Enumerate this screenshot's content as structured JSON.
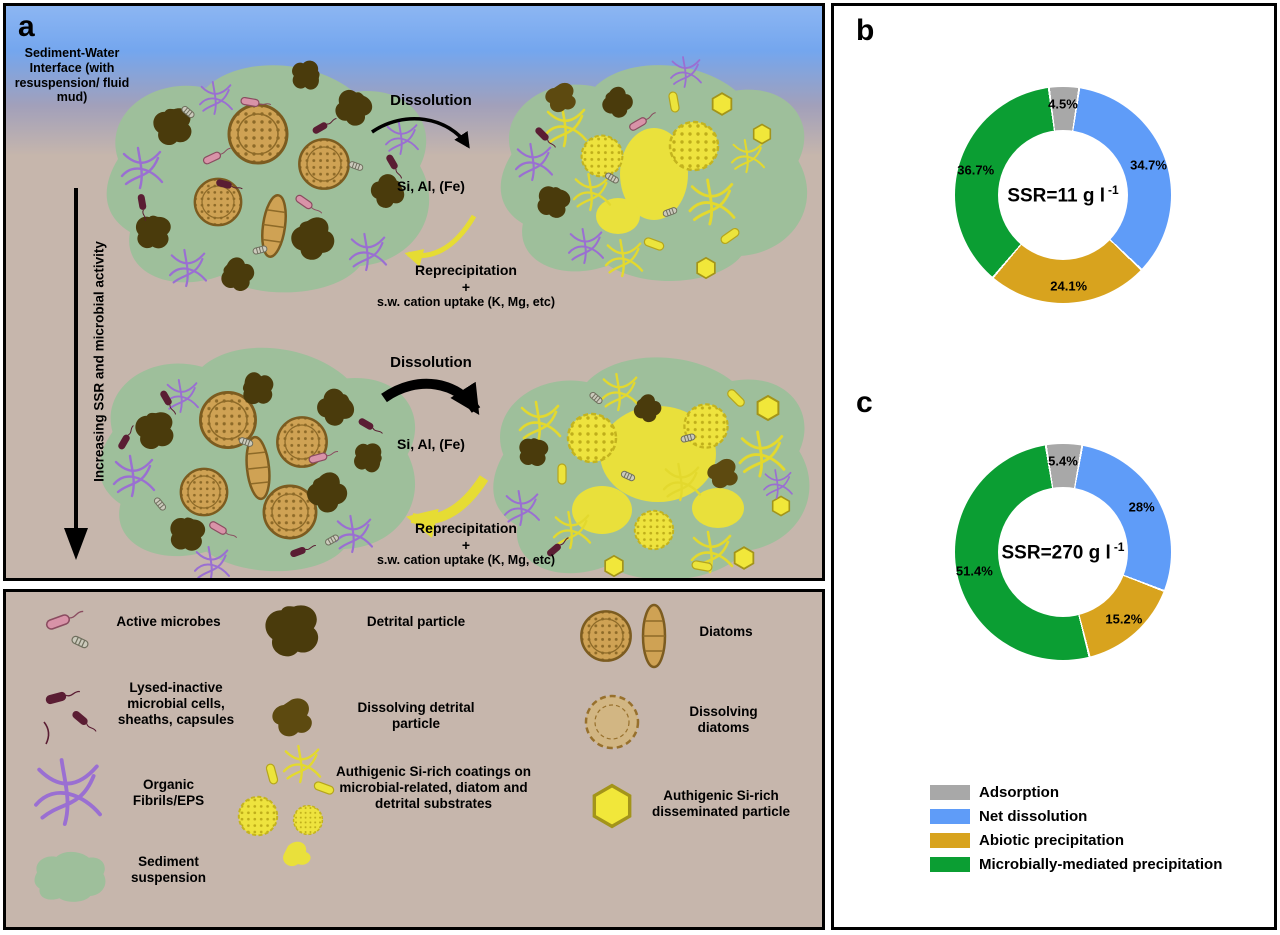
{
  "figure": {
    "panel_a": {
      "label": "a",
      "interface_caption": "Sediment-Water Interface (with resuspension/ fluid mud)",
      "axis_label": "Increasing SSR and microbial activity",
      "top_process": {
        "dissolution": "Dissolution",
        "ions": "Si, Al, (Fe)",
        "reprecipitation": "Reprecipitation",
        "plus": "+",
        "uptake": "s.w. cation uptake (K, Mg, etc)"
      },
      "bottom_process": {
        "dissolution": "Dissolution",
        "ions": "Si, Al, (Fe)",
        "reprecipitation": "Reprecipitation",
        "plus": "+",
        "uptake": "s.w. cation uptake (K, Mg, etc)"
      }
    },
    "legend_panel": {
      "items": [
        "Active microbes",
        "Lysed-inactive microbial cells, sheaths, capsules",
        "Organic Fibrils/EPS",
        "Sediment suspension",
        "Detrital particle",
        "Dissolving detrital particle",
        "Authigenic Si-rich coatings on microbial-related, diatom and detrital substrates",
        "Diatoms",
        "Dissolving diatoms",
        "Authigenic Si-rich disseminated particle"
      ]
    },
    "panel_b": {
      "label": "b"
    },
    "panel_c": {
      "label": "c"
    }
  },
  "chart_data": [
    {
      "type": "pie",
      "subtype": "donut",
      "panel": "b",
      "center_label": "SSR=11 g l",
      "center_superscript": "-1",
      "legend_position": "bottom-right",
      "segments": [
        {
          "label": "Adsorption",
          "value": 4.5,
          "display": "4.5%",
          "color": "#a8a8a8"
        },
        {
          "label": "Net dissolution",
          "value": 34.7,
          "display": "34.7%",
          "color": "#5f9cf8"
        },
        {
          "label": "Abiotic precipitation",
          "value": 24.1,
          "display": "24.1%",
          "color": "#d8a31e"
        },
        {
          "label": "Microbially-mediated precipitation",
          "value": 36.7,
          "display": "36.7%",
          "color": "#0b9e33"
        }
      ]
    },
    {
      "type": "pie",
      "subtype": "donut",
      "panel": "c",
      "center_label": "SSR=270 g l",
      "center_superscript": "-1",
      "legend_position": "bottom-right",
      "segments": [
        {
          "label": "Adsorption",
          "value": 5.4,
          "display": "5.4%",
          "color": "#a8a8a8"
        },
        {
          "label": "Net dissolution",
          "value": 28,
          "display": "28%",
          "color": "#5f9cf8"
        },
        {
          "label": "Abiotic precipitation",
          "value": 15.2,
          "display": "15.2%",
          "color": "#d8a31e"
        },
        {
          "label": "Microbially-mediated precipitation",
          "value": 51.4,
          "display": "51.4%",
          "color": "#0b9e33"
        }
      ]
    }
  ],
  "right_legend": {
    "items": [
      {
        "label": "Adsorption",
        "color": "#a8a8a8"
      },
      {
        "label": "Net dissolution",
        "color": "#5f9cf8"
      },
      {
        "label": "Abiotic precipitation",
        "color": "#d8a31e"
      },
      {
        "label": "Microbially-mediated precipitation",
        "color": "#0b9e33"
      }
    ]
  }
}
